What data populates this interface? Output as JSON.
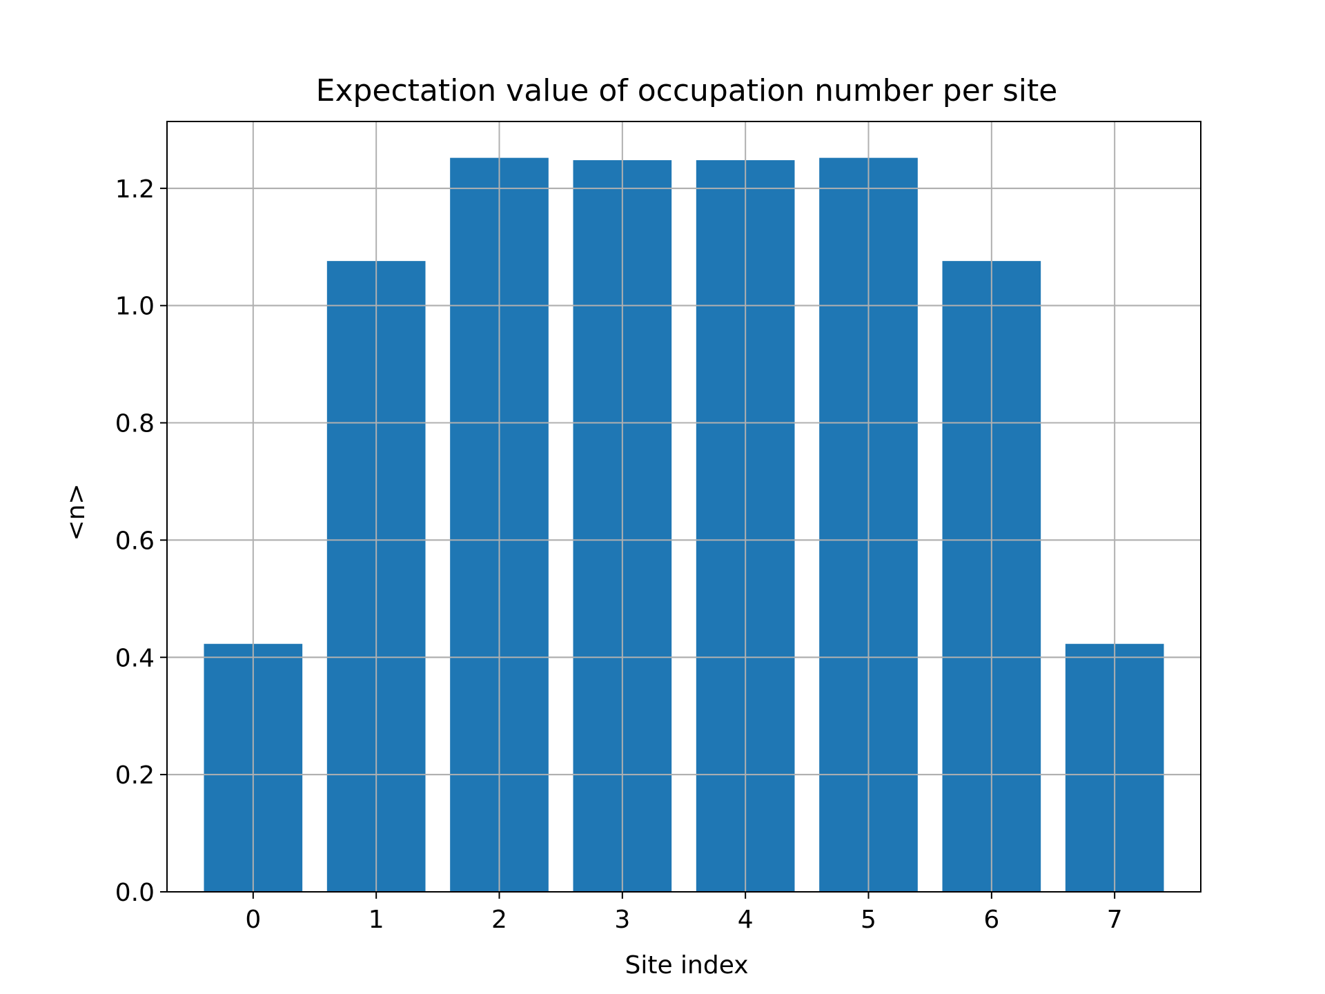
{
  "chart_data": {
    "type": "bar",
    "title": "Expectation value of occupation number per site",
    "xlabel": "Site index",
    "ylabel": "<n>",
    "categories": [
      "0",
      "1",
      "2",
      "3",
      "4",
      "5",
      "6",
      "7"
    ],
    "values": [
      0.423,
      1.076,
      1.252,
      1.248,
      1.248,
      1.252,
      1.076,
      0.423
    ],
    "ylim": [
      0.0,
      1.314
    ],
    "xlim": [
      -0.7,
      7.7
    ],
    "yticks": [
      "0.0",
      "0.2",
      "0.4",
      "0.6",
      "0.8",
      "1.0",
      "1.2"
    ],
    "grid": true,
    "bar_color": "#1f77b4",
    "grid_color": "#b0b0b0"
  }
}
